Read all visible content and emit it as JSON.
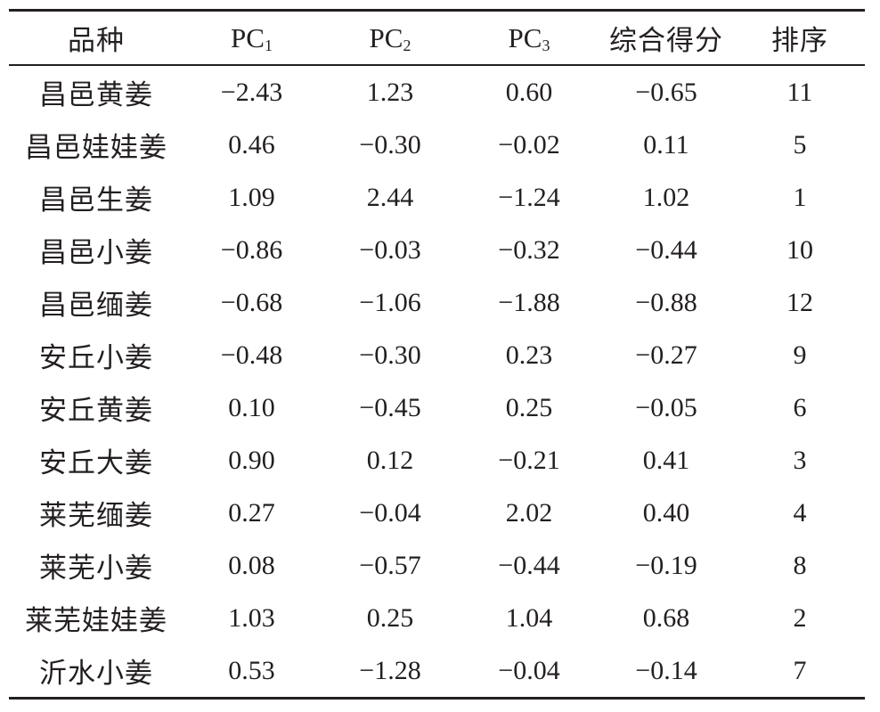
{
  "table": {
    "headers": [
      {
        "text": "品种",
        "sub": ""
      },
      {
        "text": "PC",
        "sub": "1"
      },
      {
        "text": "PC",
        "sub": "2"
      },
      {
        "text": "PC",
        "sub": "3"
      },
      {
        "text": "综合得分",
        "sub": ""
      },
      {
        "text": "排序",
        "sub": ""
      }
    ],
    "rows": [
      [
        "昌邑黄姜",
        "−2.43",
        "1.23",
        "0.60",
        "−0.65",
        "11"
      ],
      [
        "昌邑娃娃姜",
        "0.46",
        "−0.30",
        "−0.02",
        "0.11",
        "5"
      ],
      [
        "昌邑生姜",
        "1.09",
        "2.44",
        "−1.24",
        "1.02",
        "1"
      ],
      [
        "昌邑小姜",
        "−0.86",
        "−0.03",
        "−0.32",
        "−0.44",
        "10"
      ],
      [
        "昌邑缅姜",
        "−0.68",
        "−1.06",
        "−1.88",
        "−0.88",
        "12"
      ],
      [
        "安丘小姜",
        "−0.48",
        "−0.30",
        "0.23",
        "−0.27",
        "9"
      ],
      [
        "安丘黄姜",
        "0.10",
        "−0.45",
        "0.25",
        "−0.05",
        "6"
      ],
      [
        "安丘大姜",
        "0.90",
        "0.12",
        "−0.21",
        "0.41",
        "3"
      ],
      [
        "莱芜缅姜",
        "0.27",
        "−0.04",
        "2.02",
        "0.40",
        "4"
      ],
      [
        "莱芜小姜",
        "0.08",
        "−0.57",
        "−0.44",
        "−0.19",
        "8"
      ],
      [
        "莱芜娃娃姜",
        "1.03",
        "0.25",
        "1.04",
        "0.68",
        "2"
      ],
      [
        "沂水小姜",
        "0.53",
        "−1.28",
        "−0.04",
        "−0.14",
        "7"
      ]
    ]
  }
}
